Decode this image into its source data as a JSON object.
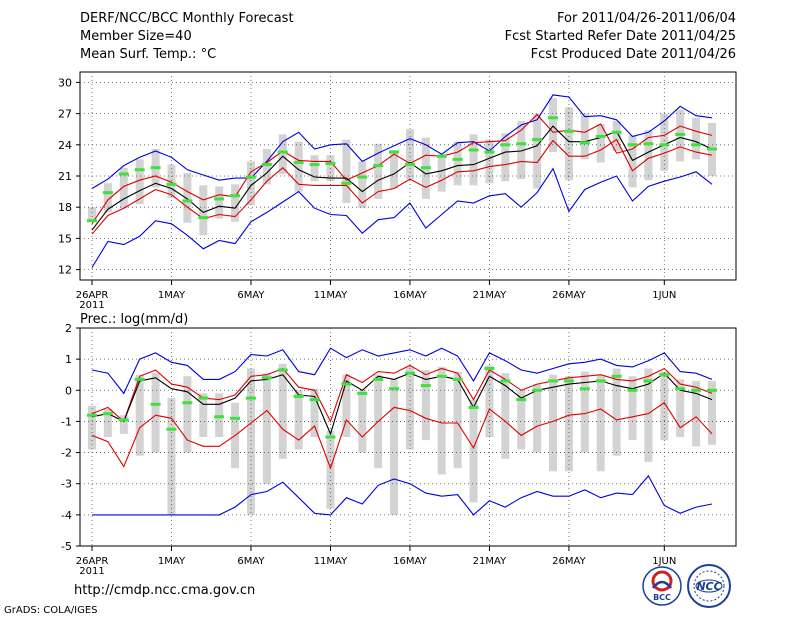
{
  "header": {
    "title": "DERF/NCC/BCC Monthly Forecast",
    "member_size": "Member Size=40",
    "variable_top": "Mean Surf. Temp.: °C",
    "forecast_period": "For 2011/04/26-2011/06/04",
    "start_date": "Fcst Started Refer Date 2011/04/25",
    "produced_date": "Fcst Produced Date 2011/04/26"
  },
  "footer": {
    "url": "http://cmdp.ncc.cma.gov.cn",
    "credit": "GrADS: COLA/IGES"
  },
  "logos": [
    {
      "name": "bcc-logo",
      "text": "BCC",
      "color": "#1b3f9a"
    },
    {
      "name": "ncc-logo",
      "text": "NCC",
      "color": "#1b3f9a"
    }
  ],
  "colors": {
    "box": "#d3d3d3",
    "median": "#40e040",
    "mean": "#000000",
    "std": "#e00000",
    "extreme": "#0000e0",
    "grid": "#555555"
  },
  "chart_data": [
    {
      "type": "box-plume",
      "name": "temperature-panel",
      "title": "Mean Surf. Temp.: °C",
      "xlabel": "",
      "ylabel": "",
      "x_count": 40,
      "ylim": [
        11,
        31
      ],
      "yticks": [
        12,
        15,
        18,
        21,
        24,
        27,
        30
      ],
      "xtick_days": [
        0,
        5,
        10,
        15,
        20,
        25,
        30,
        36
      ],
      "xtick_labels": [
        "26APR",
        "1MAY",
        "6MAY",
        "11MAY",
        "16MAY",
        "21MAY",
        "26MAY",
        "1JUN"
      ],
      "xtick_sublabel": "2011",
      "series": [
        {
          "name": "max",
          "values": [
            19.8,
            20.7,
            22.0,
            22.8,
            23.4,
            22.8,
            21.6,
            21.1,
            20.6,
            20.8,
            20.8,
            22.4,
            24.3,
            25.2,
            23.6,
            24.0,
            24.1,
            22.4,
            23.2,
            23.9,
            24.6,
            24.0,
            23.1,
            24.2,
            24.3,
            23.4,
            24.8,
            25.9,
            26.4,
            28.8,
            28.6,
            26.7,
            26.8,
            26.4,
            24.8,
            25.2,
            26.3,
            27.7,
            26.8,
            26.6
          ]
        },
        {
          "name": "std_upper",
          "values": [
            16.4,
            18.7,
            20.0,
            20.6,
            21.0,
            20.4,
            19.5,
            18.7,
            19.2,
            19.0,
            21.4,
            22.3,
            23.4,
            22.5,
            22.4,
            22.4,
            20.6,
            21.3,
            22.0,
            23.1,
            22.2,
            23.0,
            22.9,
            23.3,
            24.2,
            24.3,
            24.4,
            25.4,
            26.9,
            25.2,
            25.4,
            25.2,
            26.0,
            23.2,
            23.6,
            24.7,
            24.9,
            25.8,
            25.3,
            24.9
          ]
        },
        {
          "name": "mean",
          "values": [
            15.8,
            17.8,
            18.8,
            19.6,
            20.3,
            19.8,
            18.8,
            17.5,
            18.1,
            17.9,
            20.1,
            21.3,
            22.9,
            21.6,
            20.9,
            20.8,
            20.8,
            19.5,
            20.6,
            21.2,
            22.3,
            21.2,
            21.5,
            22.0,
            22.1,
            22.7,
            23.3,
            23.4,
            23.9,
            25.8,
            24.3,
            24.3,
            24.7,
            25.3,
            22.5,
            23.3,
            24.0,
            24.7,
            24.3,
            23.6
          ]
        },
        {
          "name": "std_lower",
          "values": [
            15.4,
            17.2,
            17.9,
            18.8,
            19.7,
            19.2,
            18.0,
            16.9,
            17.3,
            17.1,
            18.7,
            20.5,
            21.8,
            20.2,
            20.1,
            20.1,
            20.1,
            18.4,
            19.5,
            19.8,
            20.7,
            19.9,
            20.6,
            21.4,
            21.5,
            21.9,
            22.1,
            22.4,
            22.3,
            24.4,
            22.9,
            22.9,
            23.5,
            24.5,
            21.5,
            22.7,
            23.2,
            23.8,
            23.3,
            23.0
          ]
        },
        {
          "name": "min",
          "values": [
            12.2,
            14.7,
            14.4,
            15.2,
            16.7,
            16.4,
            15.3,
            14.0,
            14.8,
            14.5,
            16.6,
            17.5,
            18.5,
            19.5,
            17.9,
            17.3,
            17.2,
            15.5,
            16.8,
            17.0,
            18.4,
            16.0,
            17.3,
            18.6,
            18.4,
            19.1,
            19.3,
            18.0,
            19.4,
            21.7,
            17.6,
            19.7,
            20.4,
            21.0,
            18.6,
            20.0,
            20.5,
            20.9,
            21.4,
            20.2
          ]
        },
        {
          "name": "box_top",
          "values": [
            18.0,
            20.3,
            21.8,
            22.6,
            23.6,
            22.1,
            21.3,
            20.1,
            20.0,
            20.2,
            22.4,
            23.6,
            25.0,
            24.3,
            23.0,
            23.0,
            24.5,
            22.4,
            24.1,
            23.5,
            25.5,
            24.7,
            23.1,
            24.3,
            25.0,
            24.5,
            25.1,
            26.3,
            27.0,
            28.5,
            27.6,
            27.0,
            26.0,
            26.3,
            24.9,
            25.4,
            27.0,
            27.4,
            26.6,
            26.1
          ]
        },
        {
          "name": "box_bottom",
          "values": [
            16.6,
            17.5,
            17.9,
            18.3,
            19.9,
            18.9,
            16.5,
            15.3,
            16.9,
            16.6,
            18.2,
            20.2,
            21.2,
            19.5,
            20.5,
            20.5,
            18.4,
            17.9,
            18.8,
            19.8,
            20.7,
            18.8,
            19.5,
            20.1,
            20.1,
            20.3,
            20.5,
            20.7,
            19.8,
            23.3,
            20.6,
            22.6,
            22.3,
            23.4,
            19.9,
            20.6,
            21.5,
            22.4,
            22.6,
            21.0
          ]
        },
        {
          "name": "median",
          "values": [
            16.7,
            19.4,
            21.2,
            21.6,
            21.8,
            20.2,
            18.6,
            17.0,
            18.8,
            19.1,
            20.9,
            22.1,
            23.3,
            22.3,
            22.1,
            22.2,
            20.3,
            20.9,
            22.0,
            23.3,
            22.1,
            21.8,
            22.9,
            22.6,
            23.5,
            23.3,
            24.0,
            24.1,
            24.5,
            26.6,
            25.3,
            24.2,
            24.8,
            25.2,
            24.0,
            24.1,
            24.0,
            25.0,
            24.0,
            23.6
          ]
        }
      ]
    },
    {
      "type": "box-plume",
      "name": "precip-panel",
      "title": "Prec.: log(mm/d)",
      "xlabel": "",
      "ylabel": "",
      "x_count": 40,
      "ylim": [
        -5,
        2
      ],
      "yticks": [
        -5,
        -4,
        -3,
        -2,
        -1,
        0,
        1,
        2
      ],
      "xtick_days": [
        0,
        5,
        10,
        15,
        20,
        25,
        30,
        36
      ],
      "xtick_labels": [
        "26APR",
        "1MAY",
        "6MAY",
        "11MAY",
        "16MAY",
        "21MAY",
        "26MAY",
        "1JUN"
      ],
      "xtick_sublabel": "2011",
      "series": [
        {
          "name": "max",
          "values": [
            0.65,
            0.55,
            -0.1,
            1.0,
            1.2,
            0.9,
            0.8,
            0.35,
            0.35,
            0.6,
            1.15,
            1.1,
            1.3,
            0.6,
            0.5,
            1.35,
            1.05,
            1.3,
            1.1,
            1.2,
            1.3,
            1.1,
            1.35,
            1.1,
            0.3,
            1.2,
            0.95,
            0.65,
            0.55,
            0.7,
            0.85,
            0.9,
            1.0,
            0.8,
            0.75,
            0.95,
            1.2,
            0.6,
            0.55,
            0.35
          ]
        },
        {
          "name": "std_upper",
          "values": [
            -0.75,
            -0.55,
            -1.0,
            0.45,
            0.65,
            0.2,
            0.1,
            -0.25,
            -0.3,
            -0.15,
            0.45,
            0.5,
            0.7,
            0.1,
            0.0,
            -1.0,
            0.5,
            0.25,
            0.6,
            0.55,
            0.8,
            0.5,
            0.7,
            0.55,
            -0.3,
            0.65,
            0.35,
            0.0,
            0.2,
            0.3,
            0.4,
            0.45,
            0.5,
            0.35,
            0.3,
            0.45,
            0.7,
            0.2,
            0.1,
            -0.1
          ]
        },
        {
          "name": "mean",
          "values": [
            -0.85,
            -0.75,
            -1.0,
            0.3,
            0.4,
            0.05,
            -0.05,
            -0.45,
            -0.45,
            -0.25,
            0.3,
            0.35,
            0.5,
            -0.15,
            -0.2,
            -1.4,
            0.3,
            0.0,
            0.45,
            0.35,
            0.55,
            0.35,
            0.45,
            0.35,
            -0.55,
            0.45,
            0.15,
            -0.25,
            0.0,
            0.1,
            0.2,
            0.25,
            0.3,
            0.15,
            0.05,
            0.2,
            0.55,
            0.0,
            -0.1,
            -0.3
          ]
        },
        {
          "name": "std_lower",
          "values": [
            -1.45,
            -1.65,
            -2.45,
            -1.2,
            -0.8,
            -0.9,
            -1.6,
            -1.8,
            -1.8,
            -1.45,
            -1.05,
            -0.65,
            -1.25,
            -1.6,
            -1.15,
            -2.5,
            -0.95,
            -1.5,
            -1.0,
            -0.55,
            -0.65,
            -0.9,
            -1.05,
            -1.05,
            -1.85,
            -0.6,
            -1.0,
            -1.45,
            -1.15,
            -1.0,
            -0.8,
            -0.75,
            -0.6,
            -0.95,
            -0.85,
            -0.75,
            -0.4,
            -1.2,
            -0.85,
            -1.4
          ]
        },
        {
          "name": "min",
          "values": [
            -4.0,
            -4.0,
            -4.0,
            -4.0,
            -4.0,
            -4.0,
            -4.0,
            -4.0,
            -4.0,
            -3.75,
            -3.35,
            -3.25,
            -2.95,
            -3.45,
            -3.95,
            -4.0,
            -3.45,
            -3.65,
            -3.05,
            -2.85,
            -3.0,
            -3.3,
            -3.4,
            -3.35,
            -4.0,
            -3.55,
            -3.75,
            -3.45,
            -3.25,
            -3.4,
            -3.4,
            -3.2,
            -3.45,
            -3.3,
            -3.35,
            -2.75,
            -3.7,
            -3.95,
            -3.75,
            -3.65
          ]
        },
        {
          "name": "box_top",
          "values": [
            -0.5,
            -0.6,
            -0.8,
            0.5,
            0.55,
            -0.25,
            0.45,
            -0.1,
            -0.1,
            -0.4,
            0.7,
            0.55,
            0.85,
            0.0,
            0.05,
            -1.3,
            0.5,
            0.0,
            0.5,
            0.35,
            0.75,
            0.65,
            0.75,
            0.6,
            -0.3,
            0.8,
            0.55,
            0.0,
            0.2,
            0.5,
            0.45,
            0.6,
            0.5,
            0.7,
            0.45,
            0.7,
            0.6,
            0.35,
            0.3,
            0.3
          ]
        },
        {
          "name": "box_bottom",
          "values": [
            -1.9,
            -1.5,
            -1.4,
            -2.1,
            -2.0,
            -4.0,
            -2.0,
            -1.5,
            -1.5,
            -2.5,
            -4.0,
            -3.0,
            -2.2,
            -1.9,
            -1.5,
            -3.8,
            -1.5,
            -2.0,
            -2.5,
            -4.0,
            -1.9,
            -1.6,
            -2.7,
            -2.5,
            -3.6,
            -1.5,
            -2.2,
            -1.9,
            -2.0,
            -2.6,
            -2.6,
            -2.0,
            -2.6,
            -2.1,
            -1.6,
            -2.3,
            -1.6,
            -1.5,
            -1.8,
            -1.75
          ]
        },
        {
          "name": "median",
          "values": [
            -0.8,
            -0.75,
            -0.95,
            0.35,
            -0.45,
            -1.25,
            -0.4,
            -0.25,
            -0.85,
            -0.9,
            -0.25,
            0.4,
            0.65,
            -0.2,
            -0.3,
            -1.5,
            0.2,
            -0.1,
            0.35,
            0.05,
            0.55,
            0.15,
            0.45,
            0.35,
            -0.55,
            0.7,
            0.3,
            -0.3,
            0.0,
            0.3,
            0.3,
            0.05,
            0.3,
            0.45,
            0.0,
            0.3,
            0.5,
            0.05,
            0.0,
            0.0
          ]
        }
      ]
    }
  ]
}
